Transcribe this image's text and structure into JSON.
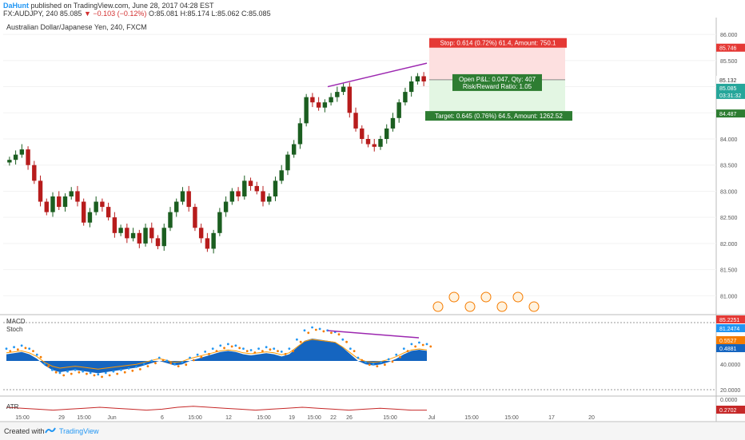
{
  "header": {
    "author": "DaHunt",
    "published": "published on TradingView.com, June 28, 2017 04:28 EST",
    "symbol": "FX:AUDJPY, 240",
    "last": "85.085",
    "change": "−0.103 (−0.12%)",
    "ohlc": "O:85.081 H:85.174 L:85.062 C:85.085"
  },
  "footer": {
    "created": "Created with",
    "brand": "TradingView"
  },
  "colors": {
    "up": "#1b5e20",
    "down": "#b71c1c",
    "macd_fill": "#1565c0",
    "stoch_k": "#2196f3",
    "stoch_d": "#f57c00",
    "divergence": "#9c27b0",
    "stop_zone": "#fde0e0",
    "target_zone": "#e3f6e3"
  },
  "chart_data": [
    {
      "type": "candlestick",
      "title": "Australian Dollar/Japanese Yen, 240, FXCM",
      "ylim": [
        80.7,
        86.2
      ],
      "y_ticks": [
        "86.000",
        "85.500",
        "85.000",
        "84.500",
        "84.000",
        "83.500",
        "83.000",
        "82.500",
        "82.000",
        "81.500",
        "81.000"
      ],
      "x_ticks": [
        "15:00",
        "29",
        "15:00",
        "Jun",
        "6",
        "15:00",
        "12",
        "15:00",
        "19",
        "15:00",
        "22",
        "26",
        "15:00",
        "Jul",
        "15:00",
        "15:00",
        "17",
        "20"
      ],
      "price_labels": [
        {
          "value": "85.746",
          "kind": "stop"
        },
        {
          "value": "85.132",
          "kind": "last"
        },
        {
          "value": "85.085",
          "kind": "close"
        },
        {
          "value": "03:31:32",
          "kind": "countdown"
        },
        {
          "value": "84.487",
          "kind": "target"
        }
      ],
      "close_path": [
        83.6,
        83.7,
        83.8,
        83.5,
        83.2,
        82.8,
        82.6,
        82.9,
        82.7,
        82.9,
        83.0,
        82.8,
        82.4,
        82.6,
        82.8,
        82.7,
        82.5,
        82.2,
        82.3,
        82.1,
        82.2,
        82.0,
        82.3,
        82.1,
        81.95,
        82.3,
        82.6,
        82.8,
        83.0,
        82.7,
        82.3,
        82.1,
        81.9,
        82.2,
        82.6,
        82.8,
        83.0,
        82.9,
        83.2,
        83.1,
        83.0,
        82.8,
        82.9,
        83.2,
        83.4,
        83.7,
        83.9,
        84.3,
        84.8,
        84.7,
        84.6,
        84.7,
        84.8,
        84.9,
        85.0,
        84.5,
        84.2,
        84.0,
        83.9,
        83.85,
        84.0,
        84.2,
        84.4,
        84.7,
        84.9,
        85.1,
        85.2,
        85.1
      ],
      "position": {
        "stop_label": "Stop: 0.614 (0.72%) 61.4, Amount: 750.1",
        "pnl_label": "Open P&L: 0.047, Qty: 407",
        "rr_label": "Risk/Reward Ratio: 1.05",
        "target_label": "Target: 0.645 (0.76%) 64.5, Amount: 1262.52",
        "stop": 85.746,
        "entry": 85.132,
        "target": 84.487
      },
      "divergence_line": {
        "from": 85.0,
        "to": 85.45
      }
    },
    {
      "type": "area",
      "labels": [
        "MACD",
        "Stoch"
      ],
      "values_right": [
        "85.2251",
        "81.2474",
        "0.5527",
        "0.4881"
      ],
      "y_ticks": [
        "40.0000",
        "20.0000"
      ],
      "macd_hist": [
        0.3,
        0.35,
        0.4,
        0.3,
        0.1,
        -0.2,
        -0.4,
        -0.5,
        -0.45,
        -0.4,
        -0.45,
        -0.5,
        -0.55,
        -0.5,
        -0.45,
        -0.4,
        -0.35,
        -0.3,
        -0.2,
        -0.1,
        0.0,
        -0.1,
        -0.2,
        -0.15,
        0.0,
        0.1,
        0.2,
        0.3,
        0.4,
        0.45,
        0.4,
        0.3,
        0.25,
        0.3,
        0.35,
        0.3,
        0.2,
        0.3,
        0.6,
        0.9,
        1.0,
        0.95,
        0.9,
        0.85,
        0.6,
        0.3,
        0.0,
        -0.15,
        -0.2,
        -0.15,
        -0.05,
        0.1,
        0.3,
        0.45,
        0.5,
        0.45
      ]
    },
    {
      "type": "line",
      "labels": [
        "ATR"
      ],
      "values_right": [
        "0.2702"
      ],
      "y_ticks": [
        "0.0000"
      ],
      "atr": [
        0.3,
        0.29,
        0.28,
        0.27,
        0.28,
        0.29,
        0.3,
        0.29,
        0.28,
        0.27,
        0.28,
        0.3,
        0.31,
        0.3,
        0.29,
        0.28,
        0.27,
        0.28,
        0.29,
        0.3,
        0.29,
        0.28,
        0.27,
        0.28,
        0.29,
        0.28,
        0.27,
        0.27
      ]
    }
  ]
}
